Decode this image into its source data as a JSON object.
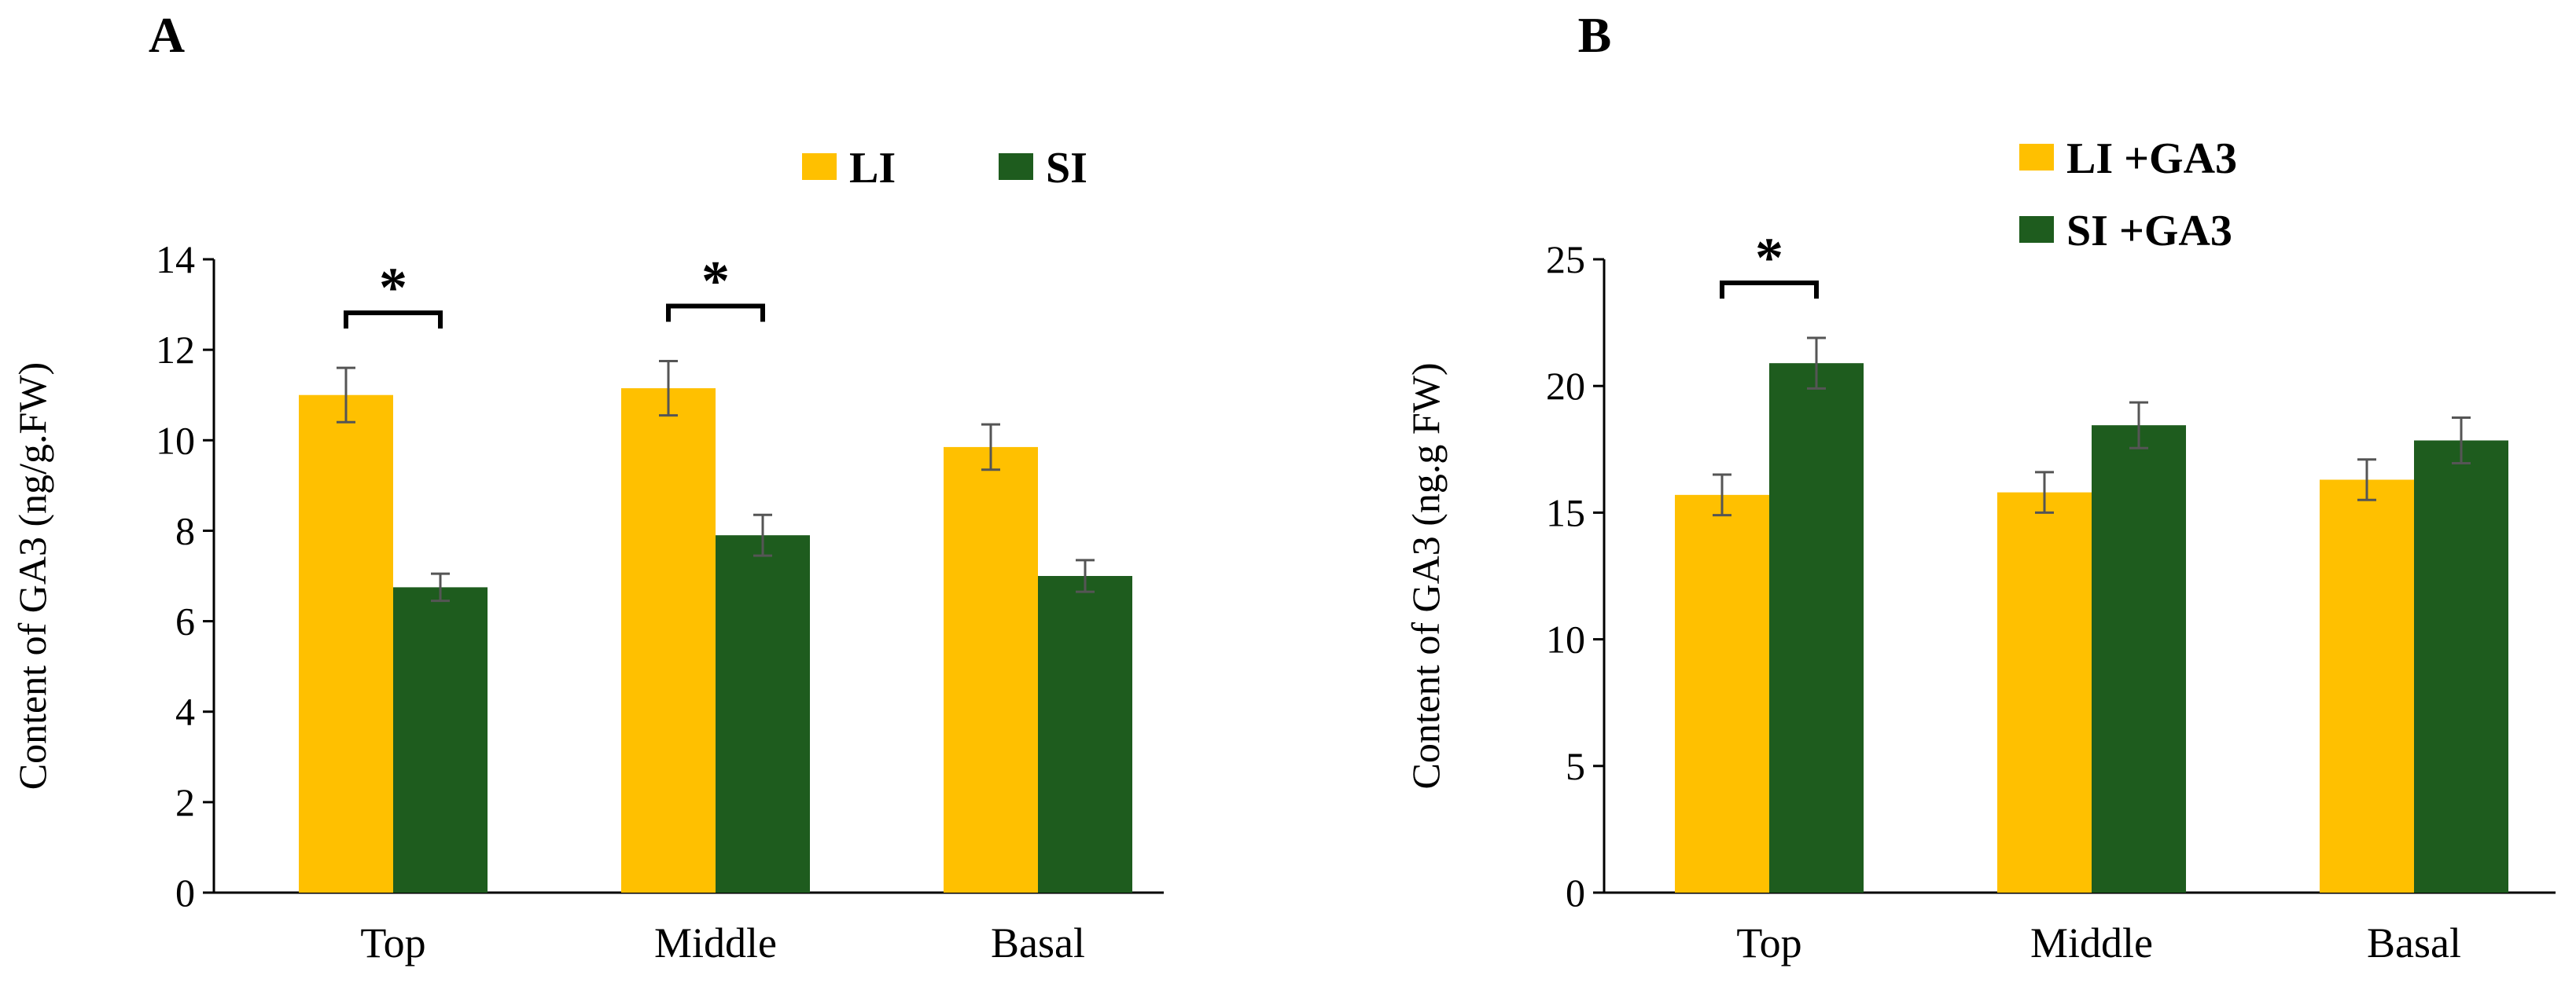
{
  "colors": {
    "series1": "#FFC000",
    "series2": "#1E5C1E",
    "axis": "#000000",
    "error": "#555555"
  },
  "chart_data": [
    {
      "panel_label": "A",
      "type": "bar",
      "categories": [
        "Top",
        "Middle",
        "Basal"
      ],
      "series": [
        {
          "name": "LI",
          "values": [
            11.0,
            11.15,
            9.85
          ],
          "errors": [
            0.6,
            0.6,
            0.5
          ]
        },
        {
          "name": "SI",
          "values": [
            6.75,
            7.9,
            7.0
          ],
          "errors": [
            0.3,
            0.45,
            0.35
          ]
        }
      ],
      "ylabel": "Content of GA3 (ng/g.FW)",
      "xlabel": "",
      "ylim": [
        0,
        14
      ],
      "yticks": [
        0,
        2,
        4,
        6,
        8,
        10,
        12,
        14
      ],
      "legend_position": "top-right",
      "legend_layout": "row",
      "significance": [
        {
          "category": "Top",
          "label": "*"
        },
        {
          "category": "Middle",
          "label": "*"
        }
      ]
    },
    {
      "panel_label": "B",
      "type": "bar",
      "categories": [
        "Top",
        "Middle",
        "Basal"
      ],
      "series": [
        {
          "name": "LI +GA3",
          "values": [
            15.7,
            15.8,
            16.3
          ],
          "errors": [
            0.8,
            0.8,
            0.8
          ]
        },
        {
          "name": "SI +GA3",
          "values": [
            20.9,
            18.45,
            17.85
          ],
          "errors": [
            1.0,
            0.9,
            0.9
          ]
        }
      ],
      "ylabel": "Content of GA3 (ng.g FW)",
      "xlabel": "",
      "ylim": [
        0,
        25
      ],
      "yticks": [
        0,
        5,
        10,
        15,
        20,
        25
      ],
      "legend_position": "top-right",
      "legend_layout": "column",
      "significance": [
        {
          "category": "Top",
          "label": "*"
        }
      ]
    }
  ]
}
